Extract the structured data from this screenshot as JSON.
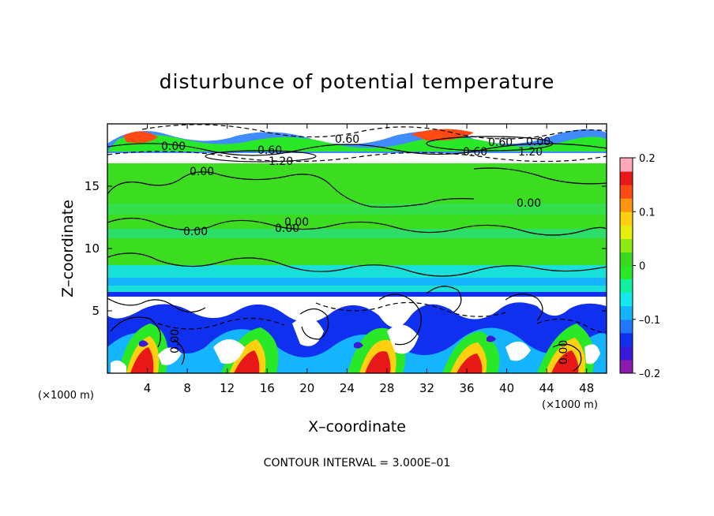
{
  "chart_data": {
    "type": "heatmap",
    "title": "disturbunce of potential temperature",
    "xlabel": "X–coordinate",
    "ylabel": "Z–coordinate",
    "x_unit": "(×1000 m)",
    "x_unit_right": "(×1000 m)",
    "xlim": [
      0,
      50
    ],
    "ylim": [
      0,
      20
    ],
    "xticks": [
      4,
      8,
      12,
      16,
      20,
      24,
      28,
      32,
      36,
      40,
      44,
      48
    ],
    "yticks": [
      5,
      10,
      15
    ],
    "colorbar": {
      "range": [
        -0.2,
        0.2
      ],
      "ticks": [
        0.2,
        0.1,
        0,
        -0.1,
        -0.2
      ],
      "tick_labels": [
        "0.2",
        "0.1",
        "0",
        "–0.1",
        "–0.2"
      ],
      "colors": [
        "#8a1ab0",
        "#3a1ad8",
        "#1030f0",
        "#1f78ff",
        "#14b4ff",
        "#17e8f0",
        "#10f0a0",
        "#28e828",
        "#3cd820",
        "#8ee814",
        "#e6ee10",
        "#ffd010",
        "#ff9410",
        "#ff4a14",
        "#e81818",
        "#ffa8b8"
      ]
    },
    "contour_interval": "CONTOUR INTERVAL = 3.000E–01",
    "contour_labels": [
      "0.00",
      "0.60",
      "0.60",
      "0.60",
      "1.20",
      "0.60",
      "1.20",
      "0.00",
      "0.00",
      "0.00",
      "0.00",
      "0.00",
      "0.00",
      "0.00",
      "0.00"
    ],
    "fields": {
      "upper_band_z": [
        17,
        20
      ],
      "middle_band_z": [
        6.3,
        17
      ],
      "lower_band_z": [
        0,
        6.3
      ]
    }
  }
}
